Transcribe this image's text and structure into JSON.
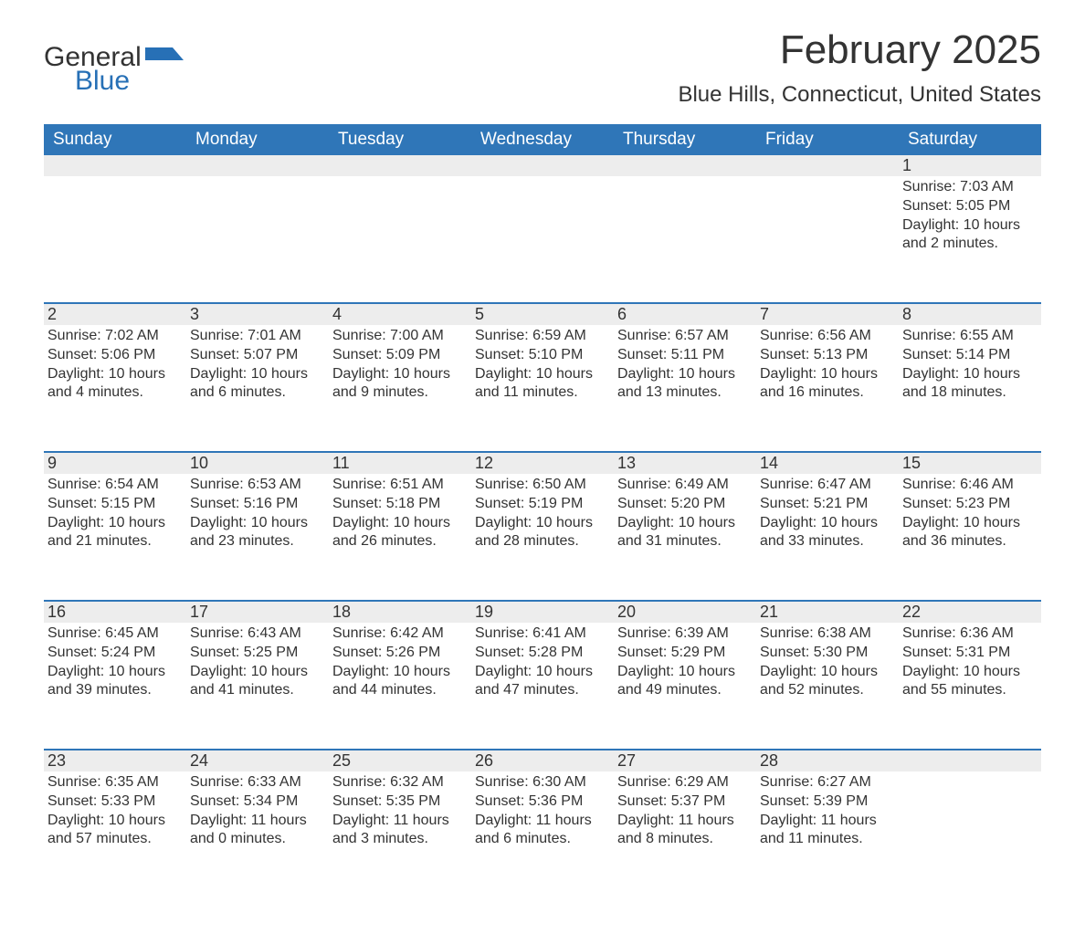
{
  "brand": {
    "word1": "General",
    "word2": "Blue",
    "logo_fill": "#2770b6"
  },
  "title": "February 2025",
  "location": "Blue Hills, Connecticut, United States",
  "colors": {
    "header_bg": "#2f76b8",
    "header_text": "#ffffff",
    "strip_bg": "#ededed",
    "rule": "#2f76b8",
    "body_text": "#333333",
    "page_bg": "#ffffff"
  },
  "weekdays": [
    "Sunday",
    "Monday",
    "Tuesday",
    "Wednesday",
    "Thursday",
    "Friday",
    "Saturday"
  ],
  "weeks": [
    [
      {},
      {},
      {},
      {},
      {},
      {},
      {
        "n": "1",
        "sunrise": "Sunrise: 7:03 AM",
        "sunset": "Sunset: 5:05 PM",
        "day1": "Daylight: 10 hours",
        "day2": "and 2 minutes."
      }
    ],
    [
      {
        "n": "2",
        "sunrise": "Sunrise: 7:02 AM",
        "sunset": "Sunset: 5:06 PM",
        "day1": "Daylight: 10 hours",
        "day2": "and 4 minutes."
      },
      {
        "n": "3",
        "sunrise": "Sunrise: 7:01 AM",
        "sunset": "Sunset: 5:07 PM",
        "day1": "Daylight: 10 hours",
        "day2": "and 6 minutes."
      },
      {
        "n": "4",
        "sunrise": "Sunrise: 7:00 AM",
        "sunset": "Sunset: 5:09 PM",
        "day1": "Daylight: 10 hours",
        "day2": "and 9 minutes."
      },
      {
        "n": "5",
        "sunrise": "Sunrise: 6:59 AM",
        "sunset": "Sunset: 5:10 PM",
        "day1": "Daylight: 10 hours",
        "day2": "and 11 minutes."
      },
      {
        "n": "6",
        "sunrise": "Sunrise: 6:57 AM",
        "sunset": "Sunset: 5:11 PM",
        "day1": "Daylight: 10 hours",
        "day2": "and 13 minutes."
      },
      {
        "n": "7",
        "sunrise": "Sunrise: 6:56 AM",
        "sunset": "Sunset: 5:13 PM",
        "day1": "Daylight: 10 hours",
        "day2": "and 16 minutes."
      },
      {
        "n": "8",
        "sunrise": "Sunrise: 6:55 AM",
        "sunset": "Sunset: 5:14 PM",
        "day1": "Daylight: 10 hours",
        "day2": "and 18 minutes."
      }
    ],
    [
      {
        "n": "9",
        "sunrise": "Sunrise: 6:54 AM",
        "sunset": "Sunset: 5:15 PM",
        "day1": "Daylight: 10 hours",
        "day2": "and 21 minutes."
      },
      {
        "n": "10",
        "sunrise": "Sunrise: 6:53 AM",
        "sunset": "Sunset: 5:16 PM",
        "day1": "Daylight: 10 hours",
        "day2": "and 23 minutes."
      },
      {
        "n": "11",
        "sunrise": "Sunrise: 6:51 AM",
        "sunset": "Sunset: 5:18 PM",
        "day1": "Daylight: 10 hours",
        "day2": "and 26 minutes."
      },
      {
        "n": "12",
        "sunrise": "Sunrise: 6:50 AM",
        "sunset": "Sunset: 5:19 PM",
        "day1": "Daylight: 10 hours",
        "day2": "and 28 minutes."
      },
      {
        "n": "13",
        "sunrise": "Sunrise: 6:49 AM",
        "sunset": "Sunset: 5:20 PM",
        "day1": "Daylight: 10 hours",
        "day2": "and 31 minutes."
      },
      {
        "n": "14",
        "sunrise": "Sunrise: 6:47 AM",
        "sunset": "Sunset: 5:21 PM",
        "day1": "Daylight: 10 hours",
        "day2": "and 33 minutes."
      },
      {
        "n": "15",
        "sunrise": "Sunrise: 6:46 AM",
        "sunset": "Sunset: 5:23 PM",
        "day1": "Daylight: 10 hours",
        "day2": "and 36 minutes."
      }
    ],
    [
      {
        "n": "16",
        "sunrise": "Sunrise: 6:45 AM",
        "sunset": "Sunset: 5:24 PM",
        "day1": "Daylight: 10 hours",
        "day2": "and 39 minutes."
      },
      {
        "n": "17",
        "sunrise": "Sunrise: 6:43 AM",
        "sunset": "Sunset: 5:25 PM",
        "day1": "Daylight: 10 hours",
        "day2": "and 41 minutes."
      },
      {
        "n": "18",
        "sunrise": "Sunrise: 6:42 AM",
        "sunset": "Sunset: 5:26 PM",
        "day1": "Daylight: 10 hours",
        "day2": "and 44 minutes."
      },
      {
        "n": "19",
        "sunrise": "Sunrise: 6:41 AM",
        "sunset": "Sunset: 5:28 PM",
        "day1": "Daylight: 10 hours",
        "day2": "and 47 minutes."
      },
      {
        "n": "20",
        "sunrise": "Sunrise: 6:39 AM",
        "sunset": "Sunset: 5:29 PM",
        "day1": "Daylight: 10 hours",
        "day2": "and 49 minutes."
      },
      {
        "n": "21",
        "sunrise": "Sunrise: 6:38 AM",
        "sunset": "Sunset: 5:30 PM",
        "day1": "Daylight: 10 hours",
        "day2": "and 52 minutes."
      },
      {
        "n": "22",
        "sunrise": "Sunrise: 6:36 AM",
        "sunset": "Sunset: 5:31 PM",
        "day1": "Daylight: 10 hours",
        "day2": "and 55 minutes."
      }
    ],
    [
      {
        "n": "23",
        "sunrise": "Sunrise: 6:35 AM",
        "sunset": "Sunset: 5:33 PM",
        "day1": "Daylight: 10 hours",
        "day2": "and 57 minutes."
      },
      {
        "n": "24",
        "sunrise": "Sunrise: 6:33 AM",
        "sunset": "Sunset: 5:34 PM",
        "day1": "Daylight: 11 hours",
        "day2": "and 0 minutes."
      },
      {
        "n": "25",
        "sunrise": "Sunrise: 6:32 AM",
        "sunset": "Sunset: 5:35 PM",
        "day1": "Daylight: 11 hours",
        "day2": "and 3 minutes."
      },
      {
        "n": "26",
        "sunrise": "Sunrise: 6:30 AM",
        "sunset": "Sunset: 5:36 PM",
        "day1": "Daylight: 11 hours",
        "day2": "and 6 minutes."
      },
      {
        "n": "27",
        "sunrise": "Sunrise: 6:29 AM",
        "sunset": "Sunset: 5:37 PM",
        "day1": "Daylight: 11 hours",
        "day2": "and 8 minutes."
      },
      {
        "n": "28",
        "sunrise": "Sunrise: 6:27 AM",
        "sunset": "Sunset: 5:39 PM",
        "day1": "Daylight: 11 hours",
        "day2": "and 11 minutes."
      },
      {}
    ]
  ]
}
